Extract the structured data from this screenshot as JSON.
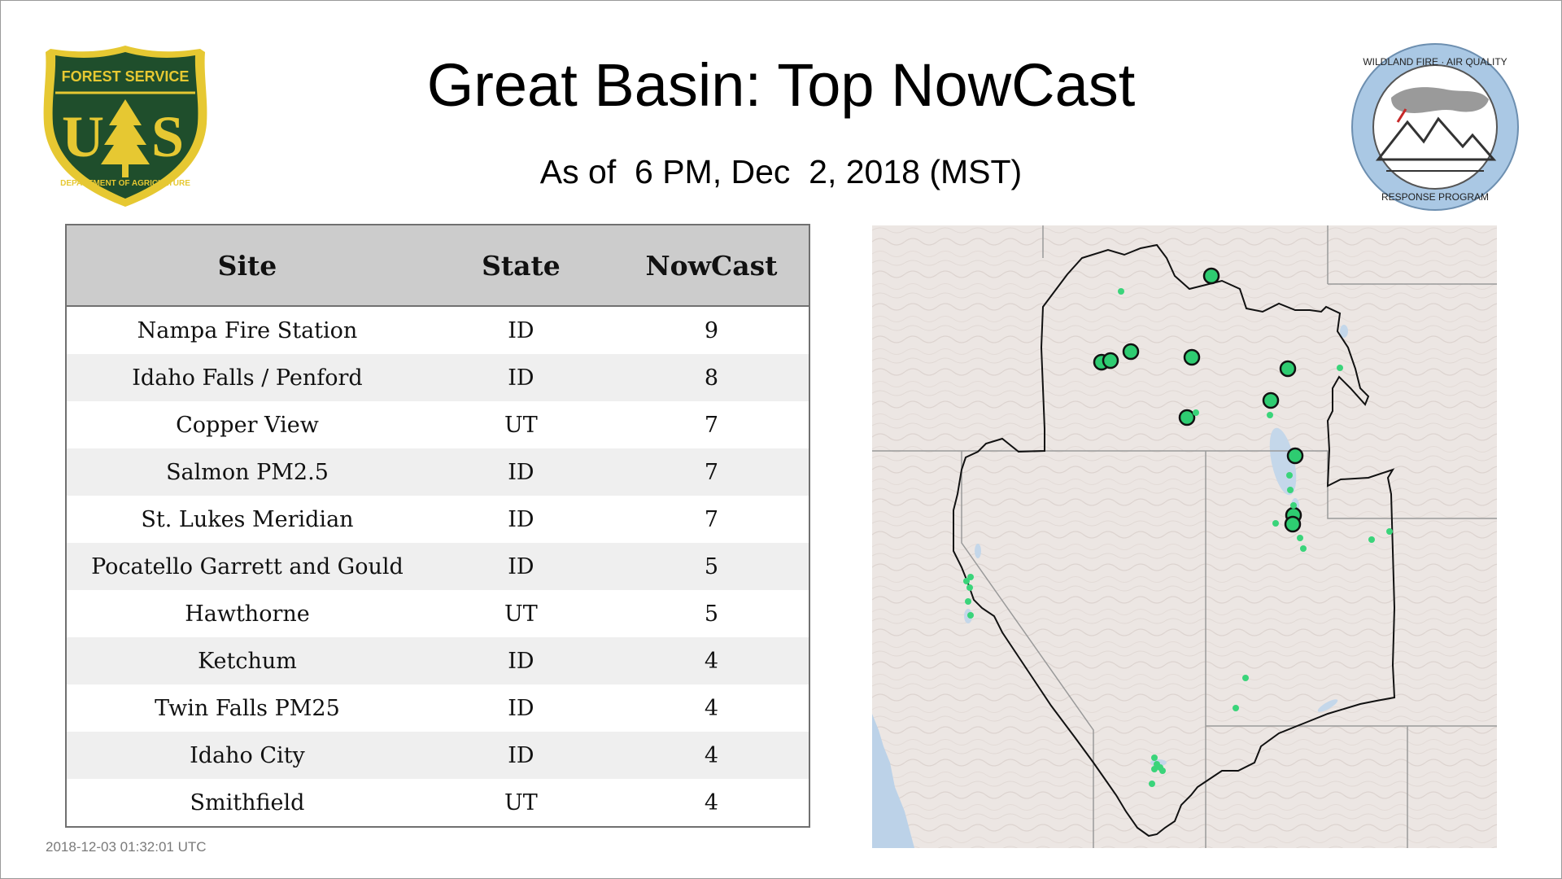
{
  "header": {
    "title": "Great Basin: Top NowCast",
    "subtitle": "As of  6 PM, Dec  2, 2018 (MST)"
  },
  "logos": {
    "left": {
      "name": "forest-service-shield",
      "top_text": "FOREST SERVICE",
      "bottom_text": "DEPARTMENT OF AGRICULTURE",
      "letters": "US",
      "colors": {
        "fill": "#1f4e2c",
        "border": "#e6c832"
      }
    },
    "right": {
      "name": "wildland-fire-air-quality-seal",
      "top_text": "WILDLAND FIRE · AIR QUALITY",
      "bottom_text": "RESPONSE PROGRAM",
      "colors": {
        "ring": "#aac8e4"
      }
    }
  },
  "table": {
    "headers": [
      "Site",
      "State",
      "NowCast"
    ],
    "rows": [
      [
        "Nampa Fire Station",
        "ID",
        "9"
      ],
      [
        "Idaho Falls / Penford",
        "ID",
        "8"
      ],
      [
        "Copper View",
        "UT",
        "7"
      ],
      [
        "Salmon PM2.5",
        "ID",
        "7"
      ],
      [
        "St. Lukes Meridian",
        "ID",
        "7"
      ],
      [
        "Pocatello Garrett and Gould",
        "ID",
        "5"
      ],
      [
        "Hawthorne",
        "UT",
        "5"
      ],
      [
        "Ketchum",
        "ID",
        "4"
      ],
      [
        "Twin Falls PM25",
        "ID",
        "4"
      ],
      [
        "Idaho City",
        "ID",
        "4"
      ],
      [
        "Smithfield",
        "UT",
        "4"
      ]
    ]
  },
  "footer": {
    "timestamp": "2018-12-03 01:32:01 UTC"
  },
  "map": {
    "colors": {
      "land": "#ece6e3",
      "water": "#bcd2e8",
      "state_line": "#9a9a9a",
      "region_outline": "#111111",
      "marker": "#2ecc71",
      "marker_small": "#3ad47a"
    }
  }
}
